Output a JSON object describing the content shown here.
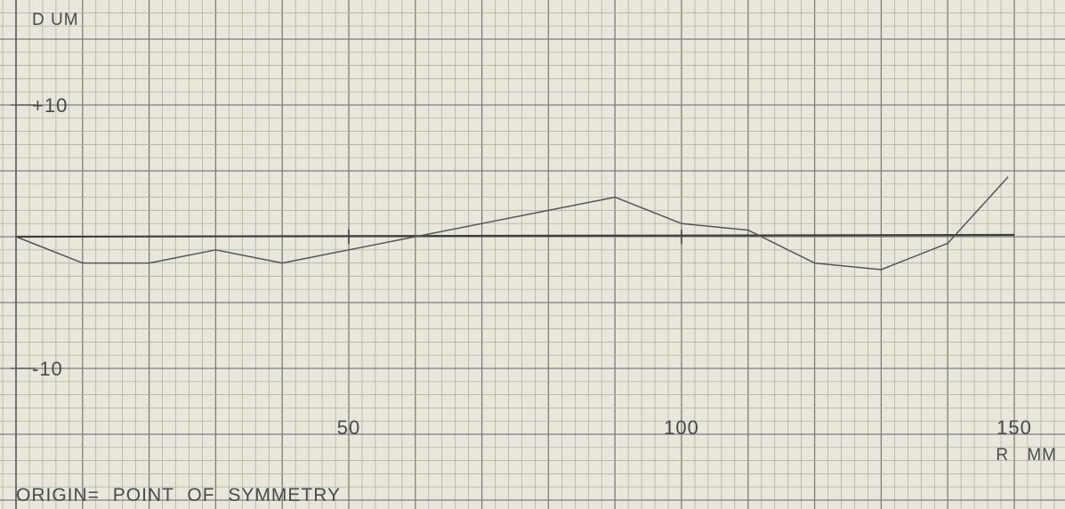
{
  "chart_data": {
    "type": "line",
    "ylabel": "D UM",
    "xlabel": "R MM",
    "note": "ORIGIN= POINT OF SYMMETRY",
    "xlim": [
      0,
      150
    ],
    "ylim": [
      -18,
      18
    ],
    "x_ticks": [
      {
        "value": 50,
        "label": "50"
      },
      {
        "value": 100,
        "label": "100"
      },
      {
        "value": 150,
        "label": "150"
      }
    ],
    "y_ticks": [
      {
        "value": 10,
        "label": "+10"
      },
      {
        "value": -10,
        "label": "-10"
      }
    ],
    "grid": true,
    "colors": {
      "paper": "#e9e7dc",
      "grid_fine": "#a9a9a2",
      "grid_major": "#7d7d78",
      "line": "#555553",
      "baseline": "#3e3e3c"
    },
    "series": [
      {
        "x": [
          0,
          10,
          20,
          30,
          40,
          50,
          60,
          70,
          80,
          90,
          100,
          110,
          120,
          130,
          140,
          149
        ],
        "values": [
          0,
          -2,
          -2,
          -1,
          -2,
          -1,
          0,
          1,
          2,
          3,
          1,
          0.5,
          -2,
          -2.5,
          -0.5,
          4.5
        ]
      }
    ]
  }
}
